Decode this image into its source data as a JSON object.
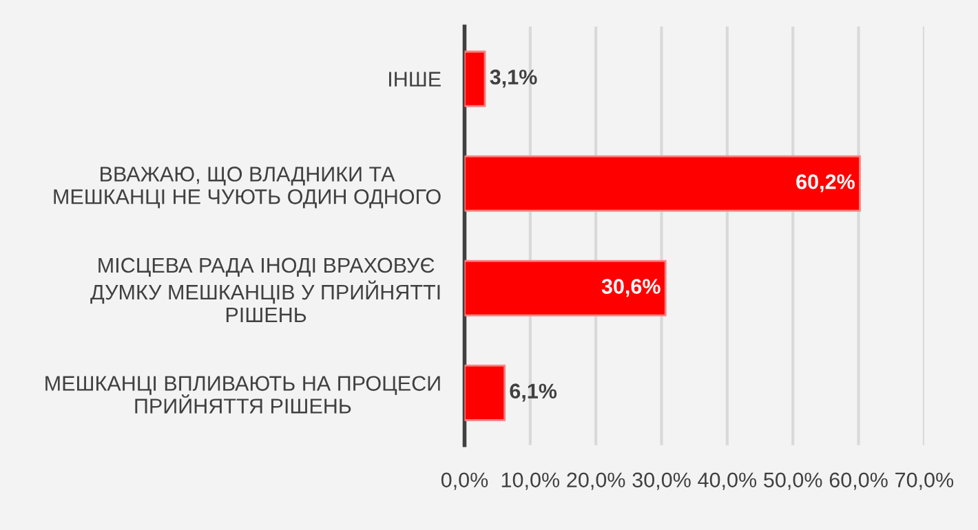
{
  "chart_data": {
    "type": "bar",
    "orientation": "horizontal",
    "categories": [
      "ІНШЕ",
      "ВВАЖАЮ, ЩО ВЛАДНИКИ ТА МЕШКАНЦІ НЕ ЧУЮТЬ ОДИН ОДНОГО",
      "МІСЦЕВА РАДА ІНОДІ ВРАХОВУЄ ДУМКУ МЕШКАНЦІВ У ПРИЙНЯТТІ РІШЕНЬ",
      "МЕШКАНЦІ ВПЛИВАЮТЬ НА ПРОЦЕСИ ПРИЙНЯТТЯ РІШЕНЬ"
    ],
    "values": [
      3.1,
      60.2,
      30.6,
      6.1
    ],
    "value_labels": [
      "3,1%",
      "60,2%",
      "30,6%",
      "6,1%"
    ],
    "color": "#ff0000",
    "xlim": [
      0,
      70
    ],
    "xticks": [
      {
        "value": 0,
        "label": "0,0%"
      },
      {
        "value": 10,
        "label": "10,0%"
      },
      {
        "value": 20,
        "label": "20,0%"
      },
      {
        "value": 30,
        "label": "30,0%"
      },
      {
        "value": 40,
        "label": "40,0%"
      },
      {
        "value": 50,
        "label": "50,0%"
      },
      {
        "value": 60,
        "label": "60,0%"
      },
      {
        "value": 70,
        "label": "70,0%"
      }
    ],
    "grid": "x",
    "legend": false
  }
}
